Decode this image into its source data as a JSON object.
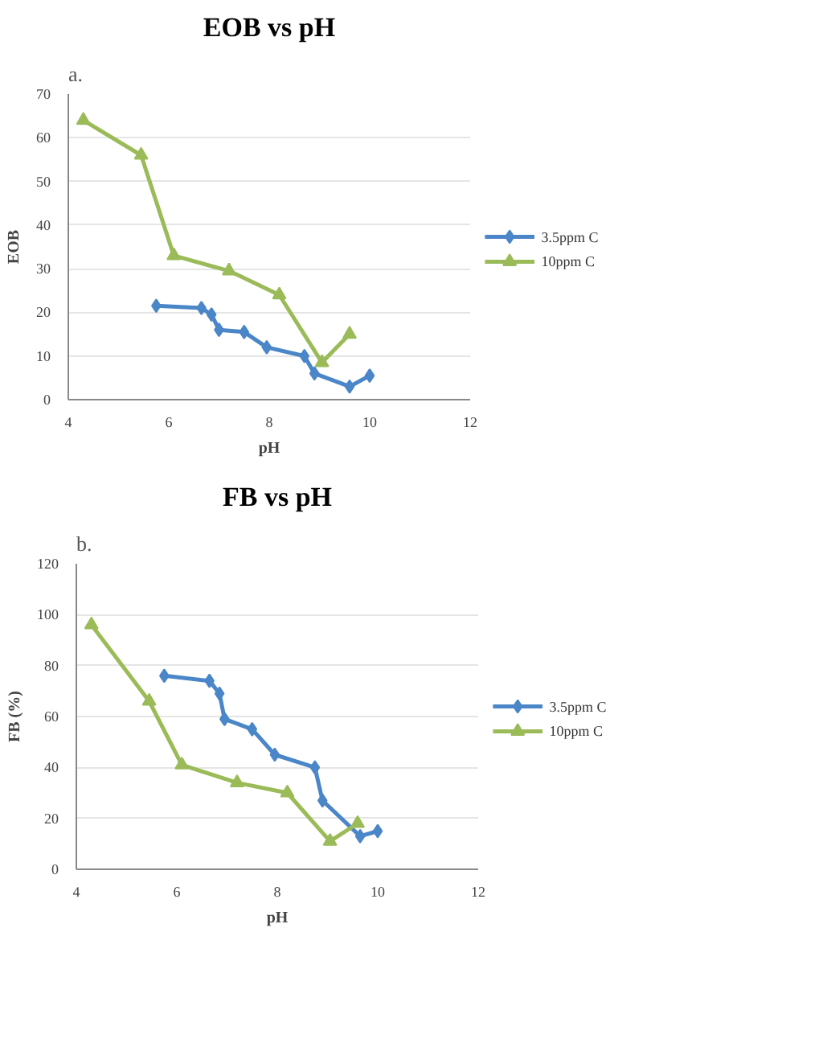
{
  "chart_data": [
    {
      "type": "line",
      "title": "EOB vs pH",
      "xlabel": "pH",
      "ylabel": "EOB",
      "annotations": [
        "a."
      ],
      "xlim": [
        4,
        12
      ],
      "xticks": [
        4,
        6,
        8,
        10,
        12
      ],
      "ylim": [
        0,
        70
      ],
      "yticks": [
        0,
        10,
        20,
        30,
        40,
        50,
        60,
        70
      ],
      "grid": "y",
      "legend": "right",
      "series": [
        {
          "name": "3.5ppm C",
          "color": "#4a86c8",
          "marker": "diamond",
          "x": [
            5.75,
            6.65,
            6.85,
            7.0,
            7.5,
            7.95,
            8.7,
            8.9,
            9.6,
            10.0
          ],
          "values": [
            21.5,
            21,
            19.5,
            16,
            15.5,
            12,
            10,
            6,
            3,
            5.5
          ]
        },
        {
          "name": "10ppm C",
          "color": "#9bbb59",
          "marker": "triangle",
          "x": [
            4.3,
            5.45,
            6.1,
            7.2,
            8.2,
            9.05,
            9.6
          ],
          "values": [
            64,
            56,
            33,
            29.5,
            24,
            8.5,
            15
          ]
        }
      ]
    },
    {
      "type": "line",
      "title": "FB vs pH",
      "xlabel": "pH",
      "ylabel": "FB (%)",
      "annotations": [
        "b."
      ],
      "xlim": [
        4,
        12
      ],
      "xticks": [
        4,
        6,
        8,
        10,
        12
      ],
      "ylim": [
        0,
        120
      ],
      "yticks": [
        0,
        20,
        40,
        60,
        80,
        100,
        120
      ],
      "grid": "y",
      "legend": "right",
      "series": [
        {
          "name": "3.5ppm C",
          "color": "#4a86c8",
          "marker": "diamond",
          "x": [
            5.75,
            6.65,
            6.85,
            6.95,
            7.5,
            7.95,
            8.75,
            8.9,
            9.65,
            10.0
          ],
          "values": [
            76,
            74,
            69,
            59,
            55,
            45,
            40,
            27,
            13,
            15
          ]
        },
        {
          "name": "10ppm C",
          "color": "#9bbb59",
          "marker": "triangle",
          "x": [
            4.3,
            5.45,
            6.1,
            7.2,
            8.2,
            9.05,
            9.6
          ],
          "values": [
            96,
            66,
            41,
            34,
            30,
            11,
            18
          ]
        }
      ]
    }
  ]
}
